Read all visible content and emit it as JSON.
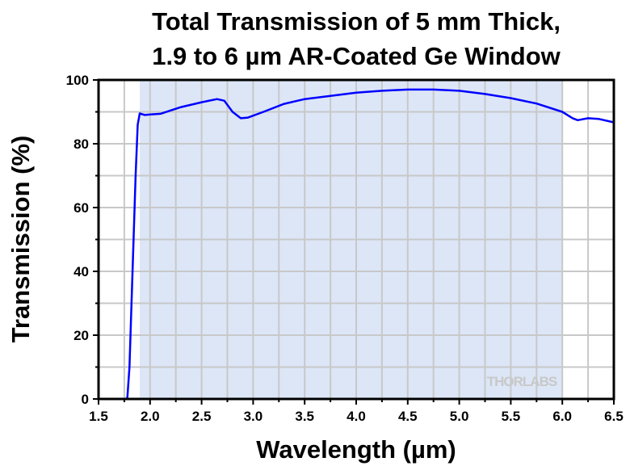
{
  "chart_data": {
    "type": "line",
    "title_lines": [
      "Total Transmission of 5 mm Thick,",
      "1.9 to 6 µm AR-Coated Ge Window"
    ],
    "xlabel": "Wavelength (µm)",
    "ylabel": "Transmission (%)",
    "xlim": [
      1.5,
      6.5
    ],
    "ylim": [
      0,
      100
    ],
    "xticks": [
      "1.5",
      "2.0",
      "2.5",
      "3.0",
      "3.5",
      "4.0",
      "4.5",
      "5.0",
      "5.5",
      "6.0",
      "6.5"
    ],
    "yticks": [
      "0",
      "20",
      "40",
      "60",
      "80",
      "100"
    ],
    "grid": true,
    "shaded_range": [
      1.9,
      6.0
    ],
    "shade_color": "#dce6f7",
    "line_color": "#0000ff",
    "watermark": "THORLABS",
    "series": [
      {
        "x": [
          1.5,
          1.77,
          1.78,
          1.8,
          1.83,
          1.86,
          1.88,
          1.9,
          1.95,
          2.0,
          2.1,
          2.3,
          2.5,
          2.65,
          2.72,
          2.8,
          2.88,
          2.95,
          3.1,
          3.3,
          3.5,
          3.75,
          4.0,
          4.25,
          4.5,
          4.75,
          5.0,
          5.25,
          5.5,
          5.75,
          6.0,
          6.1,
          6.15,
          6.25,
          6.35,
          6.5
        ],
        "y": [
          0,
          0,
          0.5,
          10,
          40,
          70,
          86,
          89.5,
          89,
          89.2,
          89.4,
          91.5,
          93,
          94,
          93.5,
          90,
          88,
          88.2,
          90,
          92.5,
          94,
          95,
          96,
          96.6,
          97,
          97,
          96.6,
          95.6,
          94.3,
          92.6,
          90,
          88,
          87.4,
          88,
          87.8,
          86.7
        ]
      }
    ]
  }
}
